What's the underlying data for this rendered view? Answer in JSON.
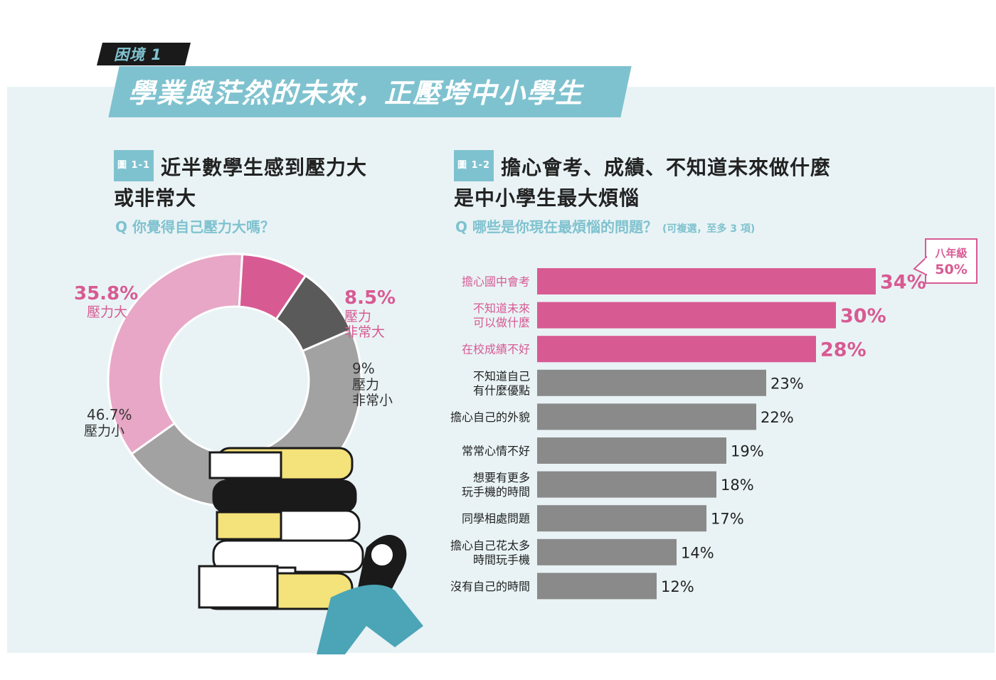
{
  "header": {
    "tag": "困境 1",
    "title": "學業與茫然的未來，正壓垮中小學生"
  },
  "fig1": {
    "tag": "圖 1-1",
    "title_line1": "近半數學生感到壓力大",
    "title_line2": "或非常大",
    "question": "Q 你覺得自己壓力大嗎？"
  },
  "fig2": {
    "tag": "圖 1-2",
    "title_line1": "擔心會考、成績、不知道未來做什麼",
    "title_line2": "是中小學生最大煩惱",
    "question": "Q 哪些是你現在最煩惱的問題？",
    "question_note": "(可複選，至多 3 項)",
    "callout_label": "八年級",
    "callout_value": "50%"
  },
  "colors": {
    "pink": "#d85a93",
    "light_pink": "#e8a7c6",
    "gray": "#a2a2a2",
    "dark_gray": "#5a5a5a",
    "bar_gray": "#8a8a8a",
    "teal": "#7fc2cf"
  },
  "chart_data": [
    {
      "type": "pie",
      "donut": true,
      "slices": [
        {
          "label": "壓力大",
          "value": 35.8,
          "display": "35.8%",
          "color": "#e8a7c6"
        },
        {
          "label": "壓力非常大",
          "label_lines": [
            "壓力",
            "非常大"
          ],
          "value": 8.5,
          "display": "8.5%",
          "color": "#d85a93"
        },
        {
          "label": "壓力非常小",
          "label_lines": [
            "壓力",
            "非常小"
          ],
          "value": 9,
          "display": "9%",
          "color": "#5a5a5a"
        },
        {
          "label": "壓力小",
          "value": 46.7,
          "display": "46.7%",
          "color": "#a2a2a2"
        }
      ]
    },
    {
      "type": "bar",
      "orientation": "horizontal",
      "categories": [
        [
          "擔心國中會考"
        ],
        [
          "不知道未來",
          "可以做什麼"
        ],
        [
          "在校成績不好"
        ],
        [
          "不知道自己",
          "有什麼優點"
        ],
        [
          "擔心自己的外貌"
        ],
        [
          "常常心情不好"
        ],
        [
          "想要有更多",
          "玩手機的時間"
        ],
        [
          "同學相處問題"
        ],
        [
          "擔心自己花太多",
          "時間玩手機"
        ],
        [
          "沒有自己的時間"
        ]
      ],
      "values": [
        34,
        30,
        28,
        23,
        22,
        19,
        18,
        17,
        14,
        12
      ],
      "labels": [
        "34%",
        "30%",
        "28%",
        "23%",
        "22%",
        "19%",
        "18%",
        "17%",
        "14%",
        "12%"
      ],
      "highlight_top": 3
    }
  ]
}
